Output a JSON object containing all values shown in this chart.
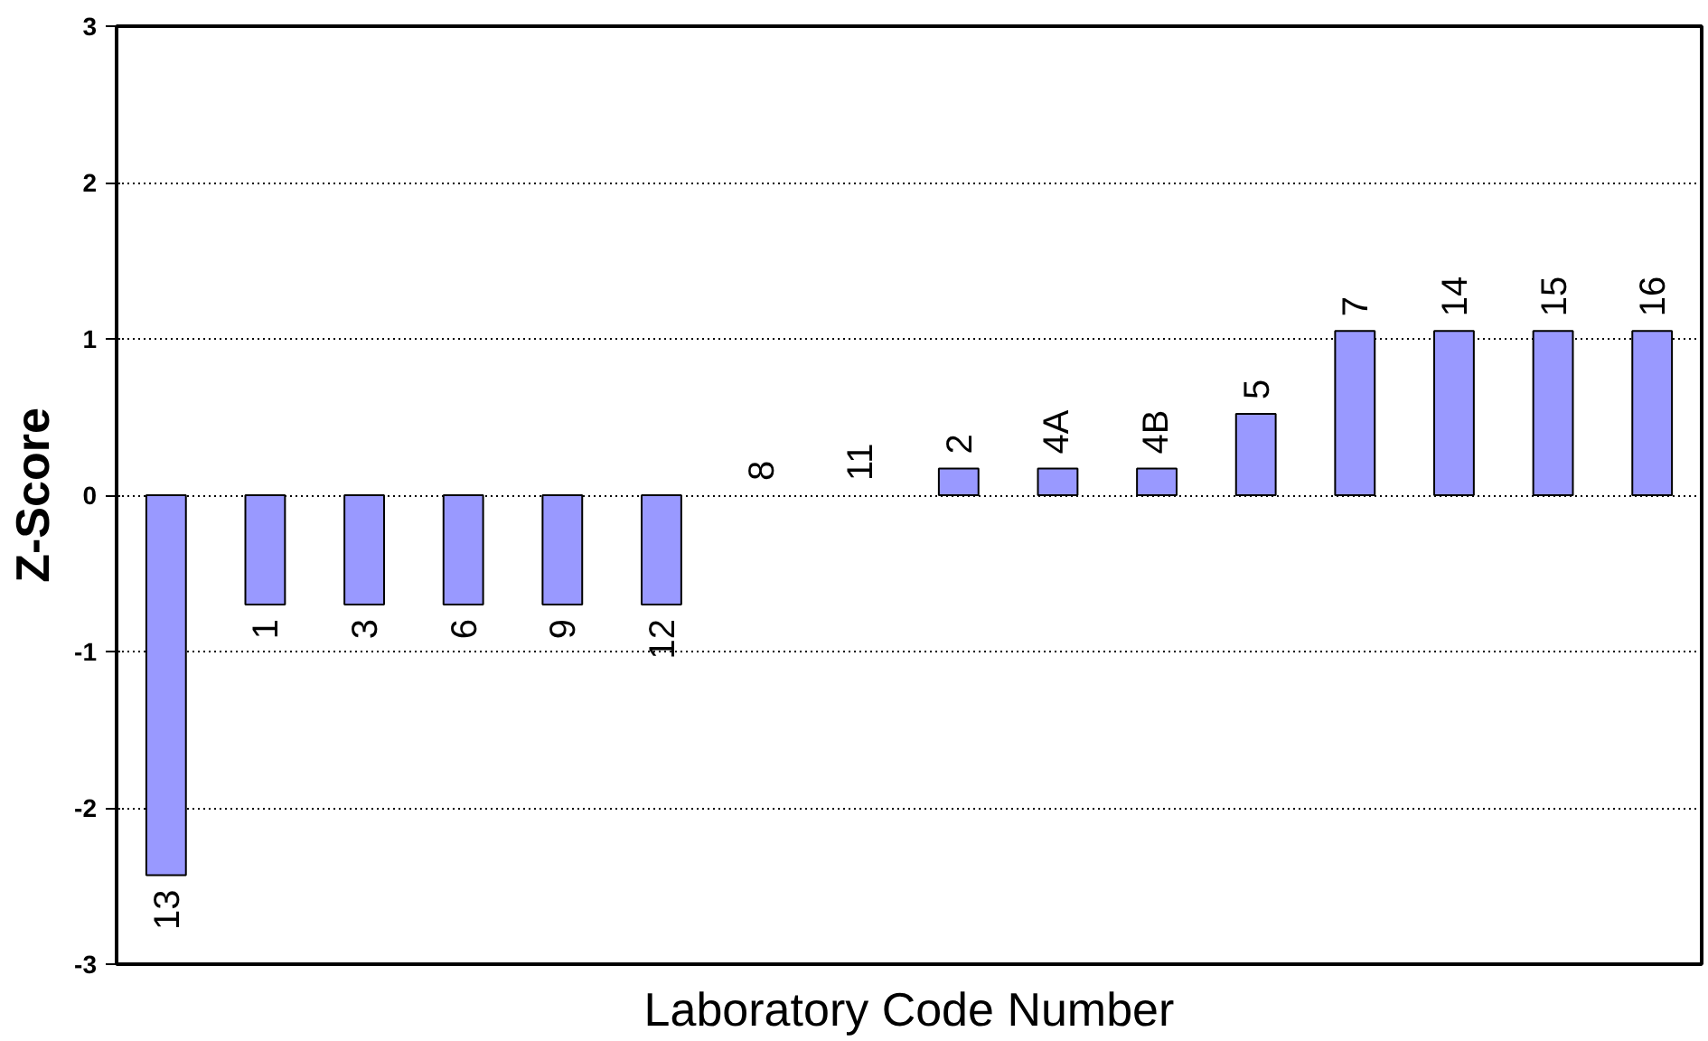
{
  "chart_data": {
    "type": "bar",
    "xlabel": "Laboratory Code Number",
    "ylabel": "Z-Score",
    "categories": [
      "13",
      "1",
      "3",
      "6",
      "9",
      "12",
      "8",
      "11",
      "2",
      "4A",
      "4B",
      "5",
      "7",
      "14",
      "15",
      "16"
    ],
    "values": [
      -2.43,
      -0.7,
      -0.7,
      -0.7,
      -0.7,
      -0.7,
      0,
      0,
      0.17,
      0.17,
      0.17,
      0.52,
      1.05,
      1.05,
      1.05,
      1.05
    ],
    "color": "#9999ff",
    "ylim": [
      -3,
      3
    ],
    "yticks": [
      -3,
      -2,
      -1,
      0,
      1,
      2,
      3
    ],
    "grid": "y",
    "tick_labels": "y"
  }
}
